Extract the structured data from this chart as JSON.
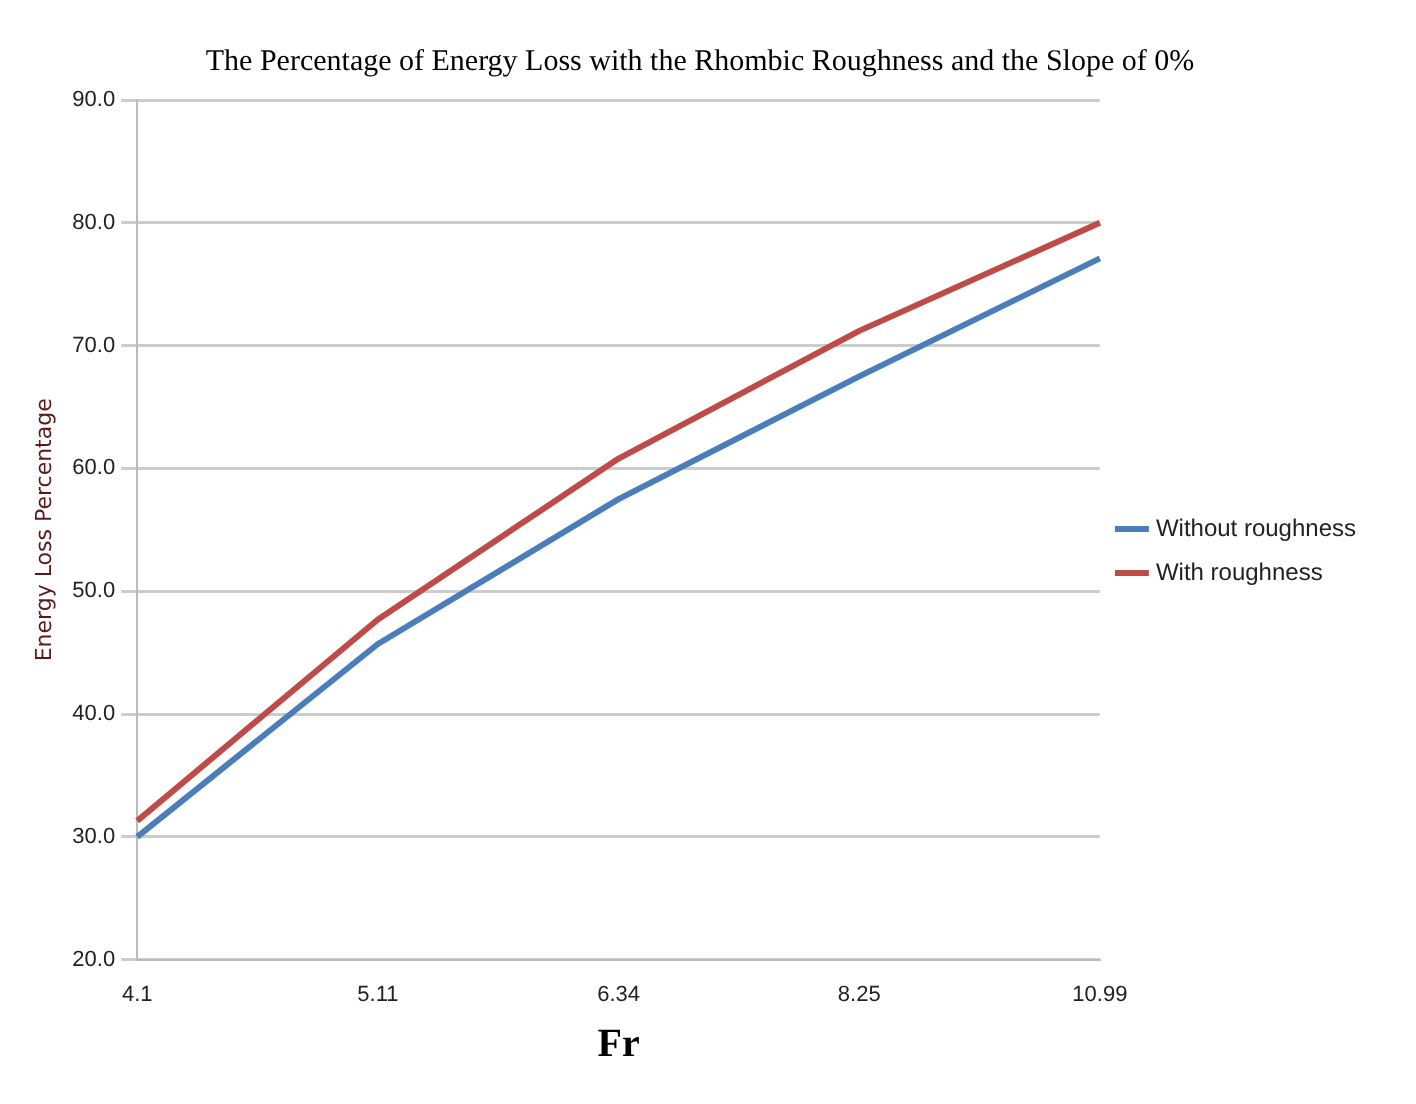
{
  "chart_data": {
    "type": "line",
    "title": "The Percentage of Energy Loss with the Rhombic Roughness and the Slope of 0%",
    "xlabel": "Fr",
    "ylabel": "Energy Loss Percentage",
    "categories": [
      "4.1",
      "5.11",
      "6.34",
      "8.25",
      "10.99"
    ],
    "series": [
      {
        "name": "Without roughness",
        "color": "#4a7ebb",
        "values": [
          30.0,
          45.7,
          57.5,
          67.5,
          77.1
        ]
      },
      {
        "name": "With roughness",
        "color": "#be4b48",
        "values": [
          31.3,
          47.7,
          60.8,
          71.2,
          80.0
        ]
      }
    ],
    "ylim": [
      20,
      90
    ],
    "yticks": [
      {
        "value": 20,
        "label": "20.0"
      },
      {
        "value": 30,
        "label": "30.0"
      },
      {
        "value": 40,
        "label": "40.0"
      },
      {
        "value": 50,
        "label": "50.0"
      },
      {
        "value": 60,
        "label": "60.0"
      },
      {
        "value": 70,
        "label": "70.0"
      },
      {
        "value": 80,
        "label": "80.0"
      },
      {
        "value": 90,
        "label": "90.0"
      }
    ],
    "grid": "y",
    "legend": "right",
    "marker": "none",
    "line_style": "solid"
  }
}
